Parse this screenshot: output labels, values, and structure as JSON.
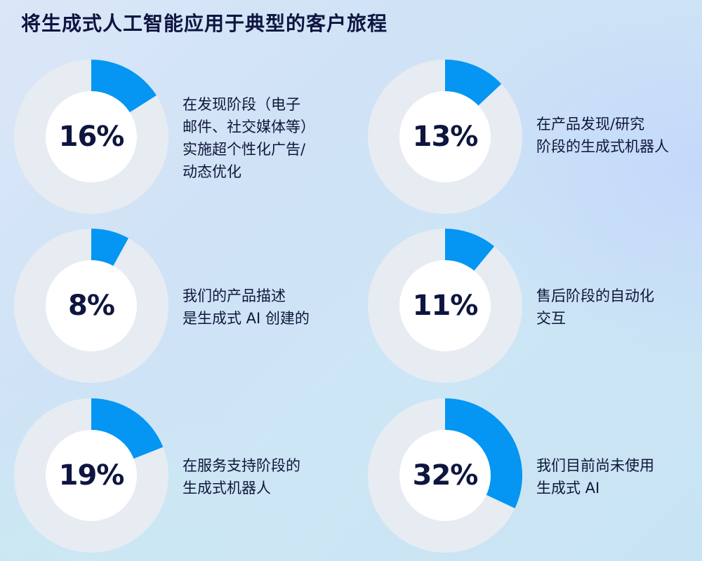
{
  "title": "将生成式人工智能应用于典型的客户旅程",
  "colors": {
    "accent": "#0496f2",
    "track": "#e7ebf2",
    "hole": "#ffffff",
    "text": "#0e1540"
  },
  "chart_data": [
    {
      "type": "pie",
      "value": 16,
      "value_label": "16%",
      "label": "在发现阶段（电子\n邮件、社交媒体等）\n实施超个性化广告/\n动态优化"
    },
    {
      "type": "pie",
      "value": 13,
      "value_label": "13%",
      "label": "在产品发现/研究\n阶段的生成式机器人"
    },
    {
      "type": "pie",
      "value": 8,
      "value_label": "8%",
      "label": "我们的产品描述\n是生成式 AI 创建的"
    },
    {
      "type": "pie",
      "value": 11,
      "value_label": "11%",
      "label": "售后阶段的自动化\n交互"
    },
    {
      "type": "pie",
      "value": 19,
      "value_label": "19%",
      "label": "在服务支持阶段的\n生成式机器人"
    },
    {
      "type": "pie",
      "value": 32,
      "value_label": "32%",
      "label": "我们目前尚未使用\n生成式 AI"
    }
  ]
}
